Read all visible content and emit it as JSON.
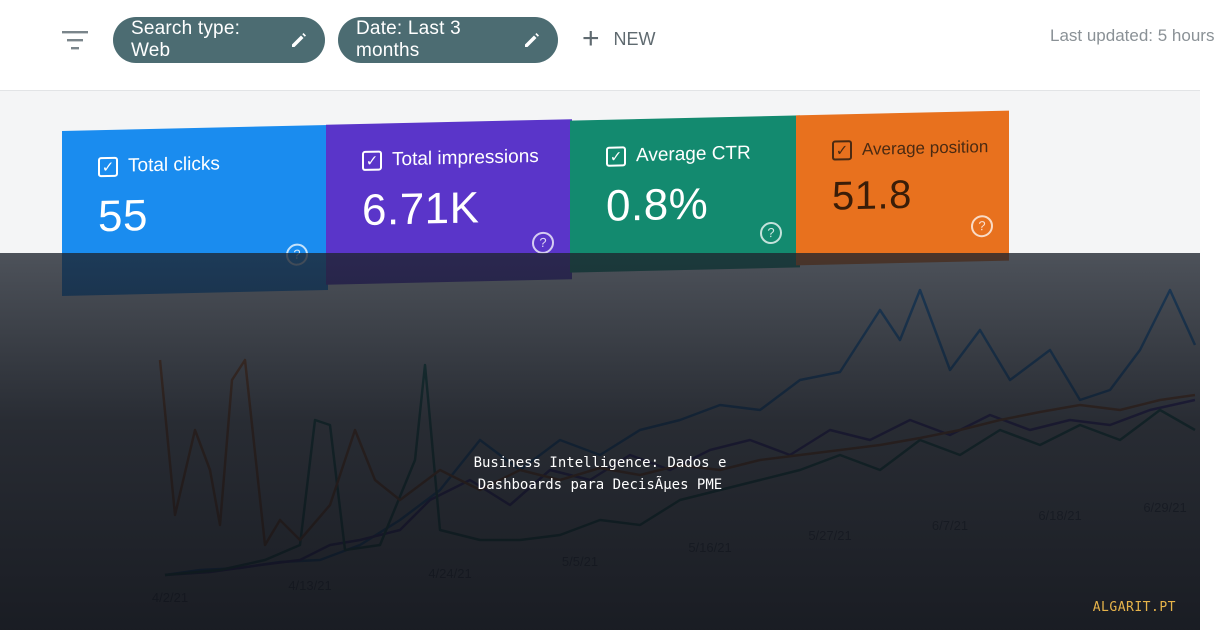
{
  "toolbar": {
    "search_type_chip": "Search type: Web",
    "date_chip": "Date: Last 3 months",
    "new_label": "NEW",
    "last_updated": "Last updated: 5 hours"
  },
  "metrics": [
    {
      "label": "Total clicks",
      "value": "55",
      "color": "#1a8cef"
    },
    {
      "label": "Total impressions",
      "value": "6.71K",
      "color": "#5a35c9"
    },
    {
      "label": "Average CTR",
      "value": "0.8%",
      "color": "#138a6f"
    },
    {
      "label": "Average position",
      "value": "51.8",
      "color": "#e8711e"
    }
  ],
  "chart_data": {
    "type": "line",
    "x_tick_labels": [
      "4/2/21",
      "4/13/21",
      "4/24/21",
      "5/5/21",
      "5/16/21",
      "5/27/21",
      "6/7/21",
      "6/18/21",
      "6/29/21"
    ],
    "series": [
      {
        "color": "#1a8cef"
      },
      {
        "color": "#5a35c9"
      },
      {
        "color": "#138a6f"
      },
      {
        "color": "#e8711e"
      }
    ]
  },
  "overlay": {
    "headline_line1": "Business Intelligence: Dados e",
    "headline_line2": "Dashboards para DecisÃµes PME",
    "brand": "ALGARIT.PT"
  },
  "icons": [
    "filter-icon",
    "pencil-icon",
    "plus-icon",
    "checkbox-icon",
    "help-icon"
  ]
}
